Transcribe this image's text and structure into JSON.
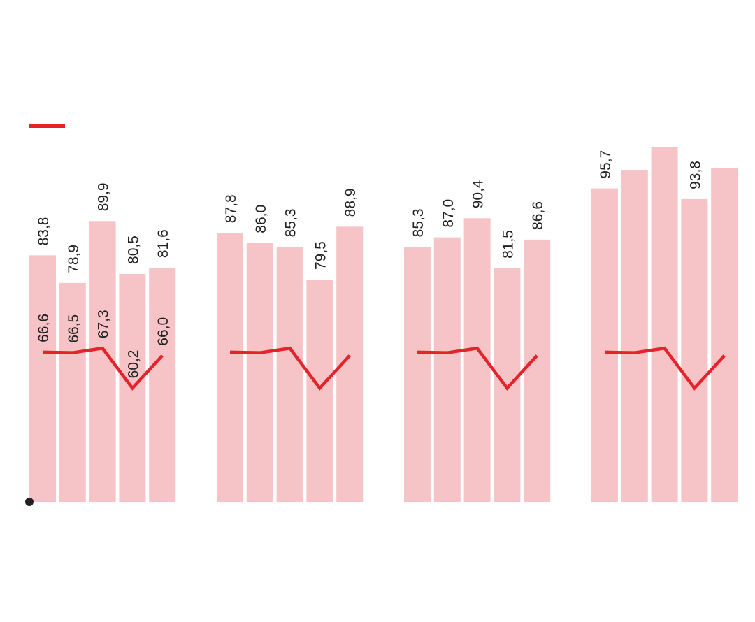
{
  "chart_data": {
    "type": "bar",
    "groups": [
      {
        "bars": [
          83.8,
          78.9,
          89.9,
          80.5,
          81.6
        ],
        "bar_labels": [
          "83,8",
          "78,9",
          "89,9",
          "80,5",
          "81,6"
        ],
        "line": [
          66.6,
          66.5,
          67.3,
          60.2,
          66.0
        ],
        "line_labels": [
          "66,6",
          "66,5",
          "67,3",
          "60,2",
          "66,0"
        ]
      },
      {
        "bars": [
          87.8,
          86.0,
          85.3,
          79.5,
          88.9
        ],
        "bar_labels": [
          "87,8",
          "86,0",
          "85,3",
          "79,5",
          "88,9"
        ],
        "line": [
          66.6,
          66.5,
          67.3,
          60.2,
          66.0
        ],
        "line_labels": []
      },
      {
        "bars": [
          85.3,
          87.0,
          90.4,
          81.5,
          86.6
        ],
        "bar_labels": [
          "85,3",
          "87,0",
          "90,4",
          "81,5",
          "86,6"
        ],
        "line": [
          66.6,
          66.5,
          67.3,
          60.2,
          66.0
        ],
        "line_labels": []
      },
      {
        "bars": [
          95.7,
          99.0,
          103.0,
          93.8,
          99.3
        ],
        "bar_labels": [
          "95,7",
          "",
          "",
          "93,8",
          ""
        ],
        "line": [
          66.6,
          66.5,
          67.3,
          60.2,
          66.0
        ],
        "line_labels": []
      }
    ],
    "ylim": [
      40,
      110
    ],
    "grid": false,
    "legend": {
      "position": "top-left",
      "series": [
        "line"
      ]
    },
    "colors": {
      "bar": "#f6c3c6",
      "line": "#e3242b",
      "baseline-dot": "#222222"
    }
  }
}
